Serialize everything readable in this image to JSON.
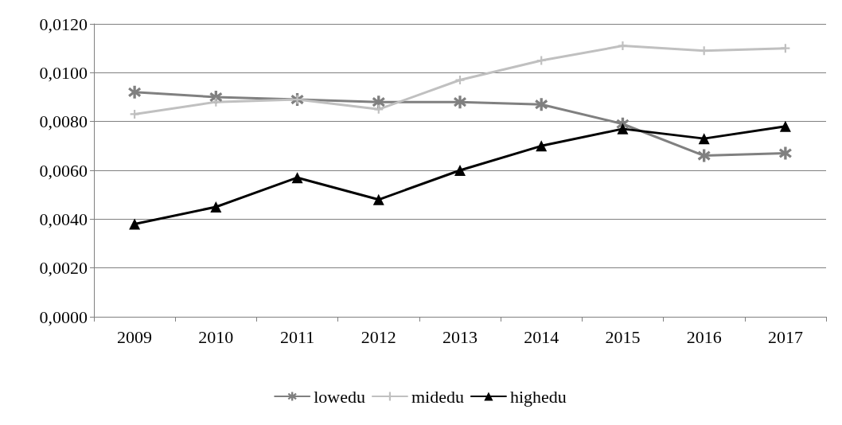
{
  "chart_data": {
    "type": "line",
    "categories": [
      "2009",
      "2010",
      "2011",
      "2012",
      "2013",
      "2014",
      "2015",
      "2016",
      "2017"
    ],
    "series": [
      {
        "name": "lowedu",
        "color": "#808080",
        "marker": "star",
        "values": [
          0.0092,
          0.009,
          0.0089,
          0.0088,
          0.0088,
          0.0087,
          0.0079,
          0.0066,
          0.0067
        ]
      },
      {
        "name": "midedu",
        "color": "#c0c0c0",
        "marker": "cross",
        "values": [
          0.0083,
          0.0088,
          0.0089,
          0.0085,
          0.0097,
          0.0105,
          0.0111,
          0.0109,
          0.011
        ]
      },
      {
        "name": "highedu",
        "color": "#000000",
        "marker": "triangle",
        "values": [
          0.0038,
          0.0045,
          0.0057,
          0.0048,
          0.006,
          0.007,
          0.0077,
          0.0073,
          0.0078
        ]
      }
    ],
    "ylim": [
      0,
      0.012
    ],
    "yticks": [
      {
        "value": 0,
        "label": "0,0000"
      },
      {
        "value": 0.002,
        "label": "0,0020"
      },
      {
        "value": 0.004,
        "label": "0,0040"
      },
      {
        "value": 0.006,
        "label": "0,0060"
      },
      {
        "value": 0.008,
        "label": "0,0080"
      },
      {
        "value": 0.01,
        "label": "0,0100"
      },
      {
        "value": 0.012,
        "label": "0,0120"
      }
    ],
    "grid": "y",
    "legend": "bottom",
    "line_style": "solid"
  }
}
